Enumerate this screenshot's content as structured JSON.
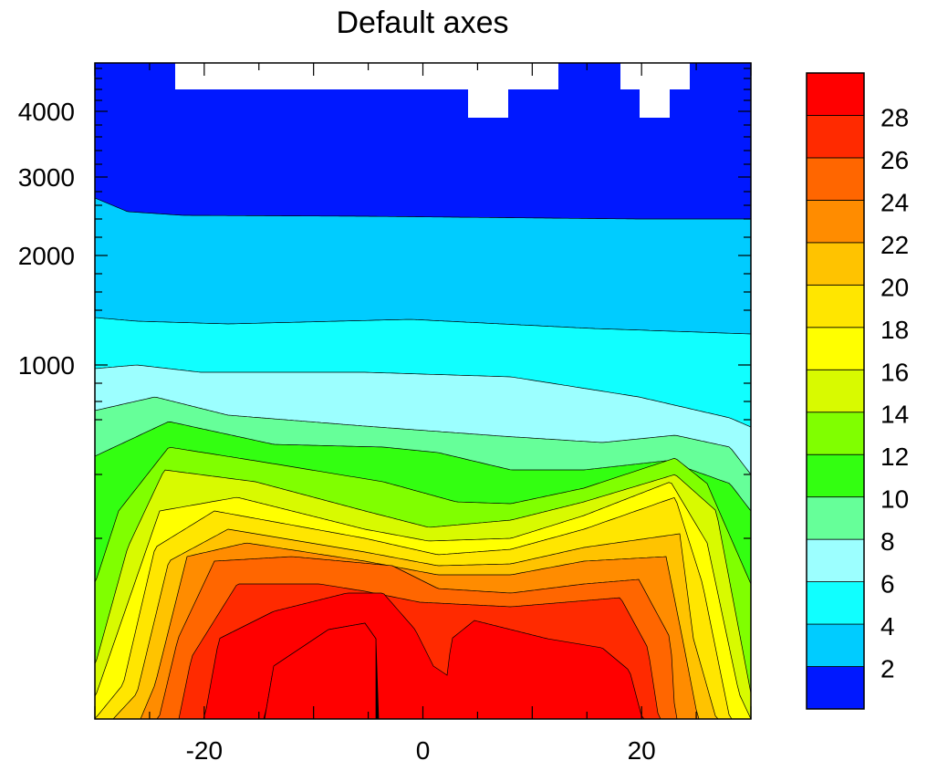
{
  "chart_data": {
    "type": "contour",
    "title": "Default axes",
    "xlabel": "",
    "ylabel": "",
    "xlim": [
      -30,
      30
    ],
    "x_ticks": [
      -20,
      0,
      20
    ],
    "x_tick_labels": [
      "-20",
      "0",
      "20"
    ],
    "y_scale": "nonlinear",
    "y_ticks": [
      1000,
      2000,
      3000,
      4000
    ],
    "y_tick_labels": [
      "1000",
      "2000",
      "3000",
      "4000"
    ],
    "contour_levels": [
      2,
      4,
      6,
      8,
      10,
      12,
      14,
      16,
      18,
      20,
      22,
      24,
      26,
      28
    ],
    "colorbar_labels": [
      "2",
      "4",
      "6",
      "8",
      "10",
      "12",
      "14",
      "16",
      "18",
      "20",
      "22",
      "24",
      "26",
      "28"
    ],
    "fill_colors": [
      "#0018FF",
      "#00CCFF",
      "#10FFFF",
      "#9CFFFF",
      "#66FF99",
      "#33FF11",
      "#80FF00",
      "#D8FA00",
      "#FFFF00",
      "#FFE600",
      "#FFC300",
      "#FF8C00",
      "#FF6600",
      "#FF2A00",
      "#FF0000"
    ],
    "missing_color": "#FFFFFF",
    "legend": "right-colorbar",
    "grid": false
  }
}
